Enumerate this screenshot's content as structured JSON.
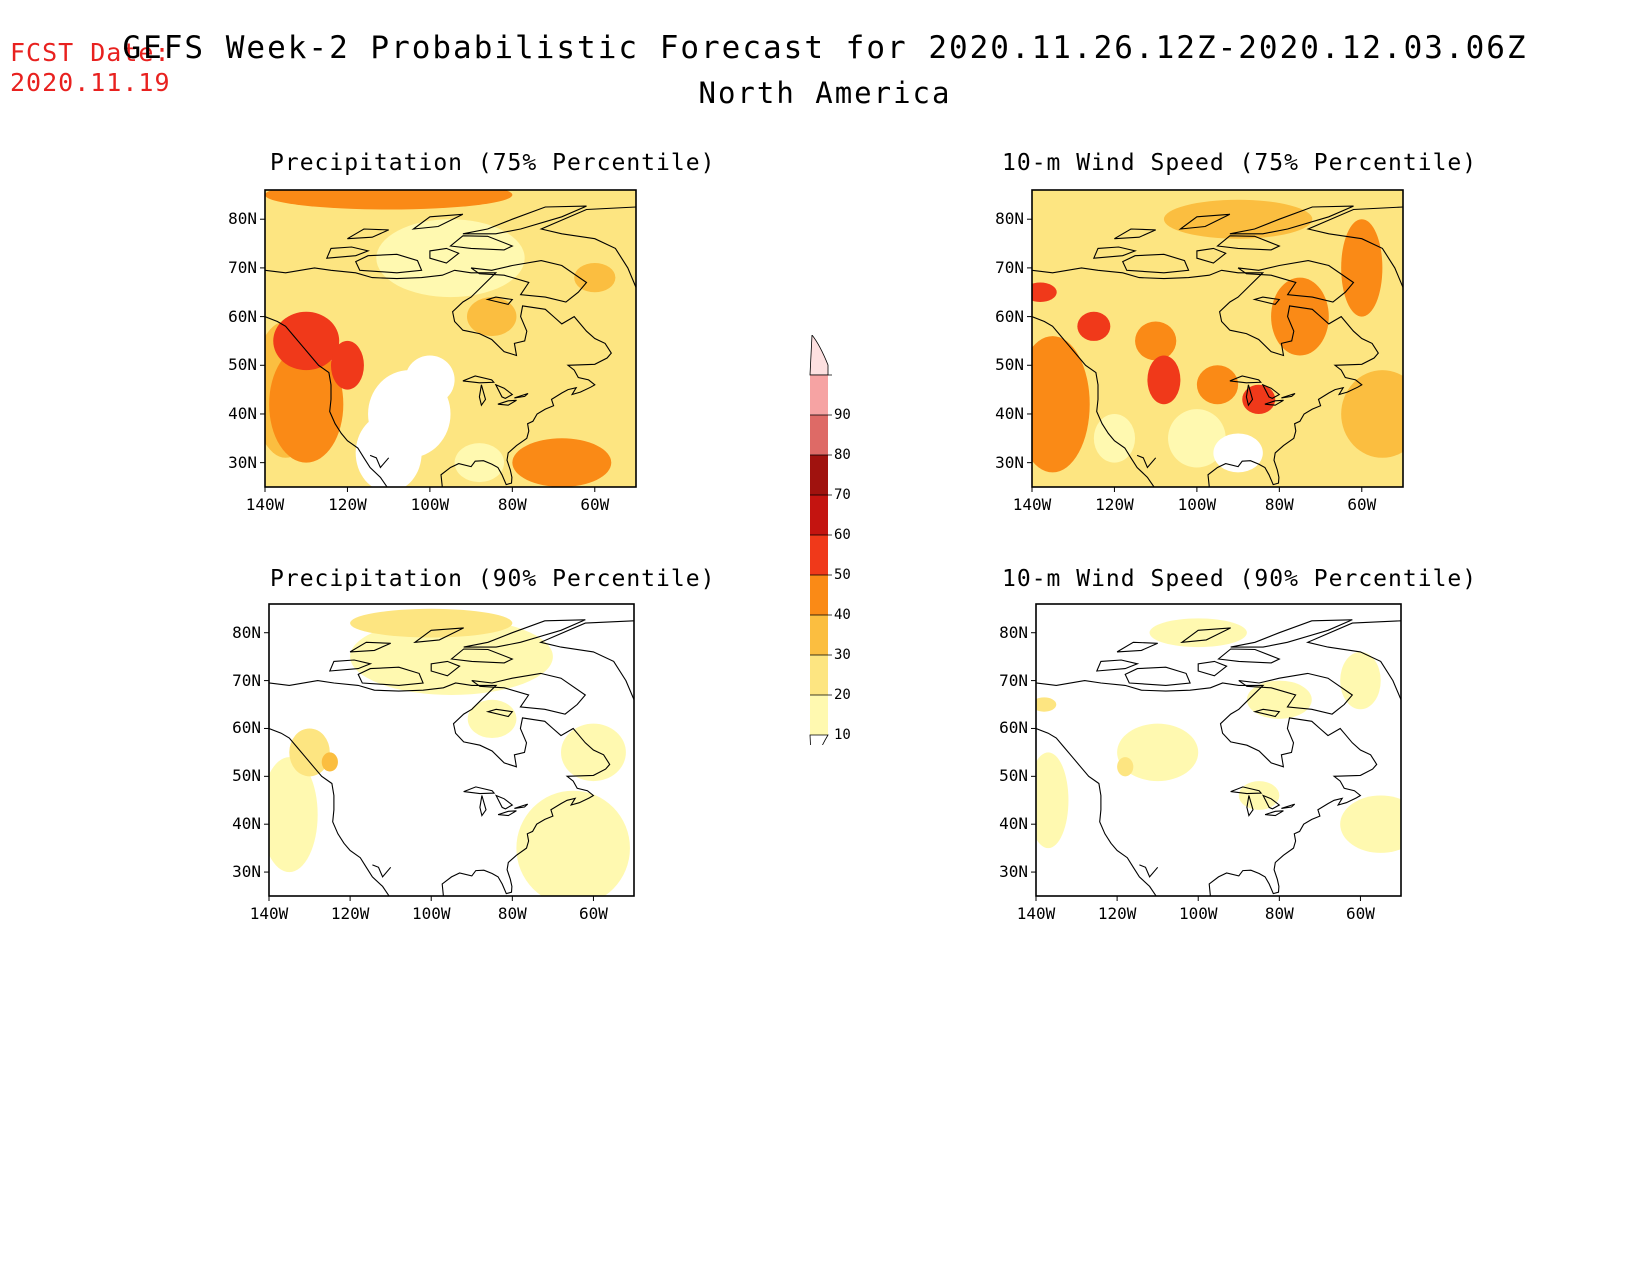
{
  "fcst": {
    "line1": "FCST Date:",
    "line2": "2020.11.19"
  },
  "title": {
    "main": "GEFS Week-2 Probabilistic Forecast for 2020.11.26.12Z-2020.12.03.06Z",
    "region": "North America"
  },
  "colors": {
    "fcst_text": "#e8211f",
    "c10": "#fff9b0",
    "c20": "#fde581",
    "c30": "#fbbe40",
    "c40": "#fa8a16",
    "c50": "#f0391a",
    "c60": "#c41410",
    "c70": "#a0120e",
    "c80": "#de6a66",
    "c90": "#f6a3a3",
    "c100": "#fde0e0"
  },
  "panels": [
    {
      "title": "Precipitation (75% Percentile)",
      "base_level": 20
    },
    {
      "title": "10-m Wind Speed (75% Percentile)",
      "base_level": 20
    },
    {
      "title": "Precipitation (90% Percentile)",
      "base_level": 10
    },
    {
      "title": "10-m Wind Speed (90% Percentile)",
      "base_level": 10
    }
  ],
  "axes": {
    "lat_labels": [
      "80N",
      "70N",
      "60N",
      "50N",
      "40N",
      "30N"
    ],
    "lon_labels": [
      "140W",
      "120W",
      "100W",
      "80W",
      "60W"
    ]
  },
  "colorbar": {
    "levels": [
      "90",
      "80",
      "70",
      "60",
      "50",
      "40",
      "30",
      "20",
      "10"
    ]
  }
}
